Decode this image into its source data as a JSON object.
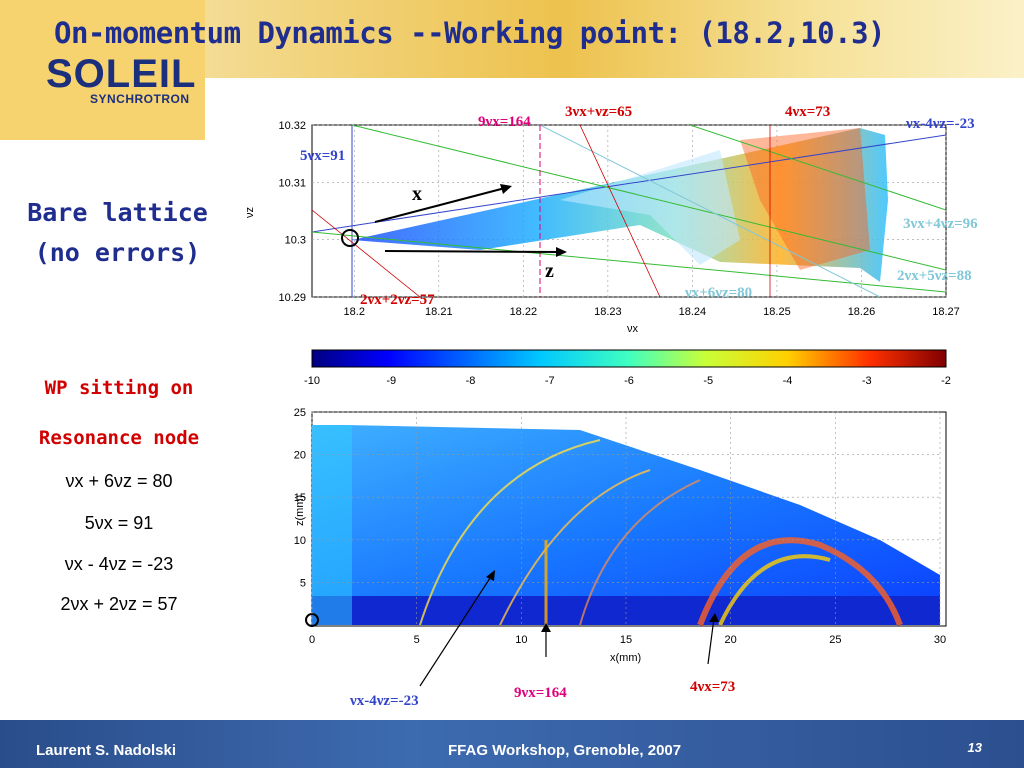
{
  "slide": {
    "title": "On-momentum Dynamics  --Working point: (18.2,10.3)",
    "logo": {
      "name": "SOLEIL",
      "sub": "SYNCHROTRON"
    },
    "sidebar": {
      "heading_line1": "Bare lattice",
      "heading_line2": "(no errors)",
      "wp_line1": "WP sitting on",
      "wp_line2": "Resonance node",
      "resonances": [
        "νx + 6νz = 80",
        "5νx = 91",
        "νx - 4νz = -23",
        "2νx + 2νz = 57"
      ]
    },
    "footer": {
      "author": "Laurent S. Nadolski",
      "event": "FFAG Workshop, Grenoble, 2007",
      "page": "13"
    }
  },
  "colors": {
    "title_blue": "#1f2d8f",
    "red": "#d20000",
    "magenta": "#e0007a",
    "green": "#33bb33",
    "cyan": "#80c8d8",
    "blue_line": "#3344cc"
  },
  "chart_data": [
    {
      "type": "scatter",
      "title": "",
      "xlabel": "νx",
      "ylabel": "νz",
      "xlim": [
        18.195,
        18.27
      ],
      "ylim": [
        10.29,
        10.32
      ],
      "x_ticks": [
        "18.2",
        "18.21",
        "18.22",
        "18.23",
        "18.24",
        "18.25",
        "18.26",
        "18.27"
      ],
      "y_ticks": [
        "10.29",
        "10.3",
        "10.31",
        "10.32"
      ],
      "grid": true,
      "working_point": [
        18.2,
        10.3
      ],
      "arrows": [
        "x",
        "z"
      ],
      "resonance_labels": [
        {
          "text": "9νx=164",
          "color": "#e0007a"
        },
        {
          "text": "3νx+νz=65",
          "color": "#d20000"
        },
        {
          "text": "4νx=73",
          "color": "#d20000"
        },
        {
          "text": "νx-4νz=-23",
          "color": "#3344cc"
        },
        {
          "text": "5νx=91",
          "color": "#3344cc"
        },
        {
          "text": "3νx+4νz=96",
          "color": "#80c8d8"
        },
        {
          "text": "2νx+5νz=88",
          "color": "#80c8d8"
        },
        {
          "text": "νx+6νz=80",
          "color": "#80c8d8"
        },
        {
          "text": "2νx+2νz=57",
          "color": "#d20000"
        }
      ]
    },
    {
      "type": "heatmap",
      "title": "",
      "colorbar_ticks": [
        "-10",
        "-9",
        "-8",
        "-7",
        "-6",
        "-5",
        "-4",
        "-3",
        "-2"
      ],
      "colorbar_range": [
        -10,
        -2
      ],
      "xlabel": "x(mm)",
      "ylabel": "z(mm)",
      "xlim": [
        0,
        30
      ],
      "ylim": [
        0,
        25
      ],
      "x_ticks": [
        "0",
        "5",
        "10",
        "15",
        "20",
        "25",
        "30"
      ],
      "y_ticks": [
        "5",
        "10",
        "15",
        "20",
        "25"
      ],
      "grid": true,
      "annotations": [
        {
          "text": "νx-4νz=-23",
          "color": "#3344cc"
        },
        {
          "text": "9νx=164",
          "color": "#e0007a"
        },
        {
          "text": "4νx=73",
          "color": "#d20000"
        }
      ]
    }
  ]
}
